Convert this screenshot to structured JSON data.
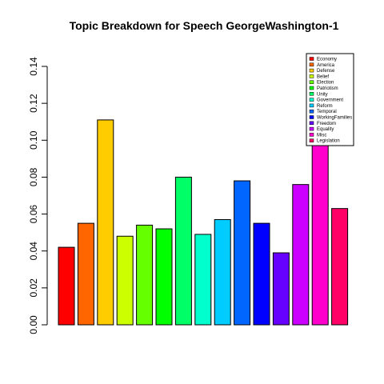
{
  "chart_data": {
    "type": "bar",
    "title": "Topic Breakdown for Speech GeorgeWashington-1",
    "xlabel": "",
    "ylabel": "",
    "ylim": [
      0,
      0.14
    ],
    "yticks": [
      "0.00",
      "0.02",
      "0.04",
      "0.06",
      "0.08",
      "0.10",
      "0.12",
      "0.14"
    ],
    "grid": false,
    "legend_position": "top-right",
    "categories": [
      "Economy",
      "America",
      "Defense",
      "Belief",
      "Election",
      "Patriotism",
      "Unity",
      "Government",
      "Reform",
      "Temporal",
      "WorkingFamilies",
      "Freedom",
      "Equality",
      "Misc",
      "Legislation"
    ],
    "values": [
      0.042,
      0.055,
      0.111,
      0.048,
      0.054,
      0.052,
      0.08,
      0.049,
      0.057,
      0.078,
      0.055,
      0.039,
      0.076,
      0.101,
      0.063
    ],
    "colors": [
      "#FF0000",
      "#FF6600",
      "#FFCC00",
      "#CCFF00",
      "#66FF00",
      "#00FF00",
      "#00FF66",
      "#00FFCC",
      "#00CCFF",
      "#0066FF",
      "#0000FF",
      "#6600FF",
      "#CC00FF",
      "#FF00CC",
      "#FF0066"
    ]
  }
}
